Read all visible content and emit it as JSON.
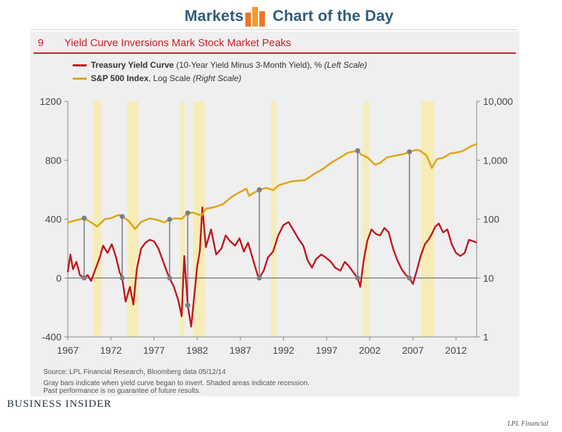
{
  "header": {
    "markets": "Markets",
    "chart_of_the_day": "Chart of the Day",
    "icon": "bar-chart-icon"
  },
  "figure": {
    "number": "9",
    "title": "Yield Curve Inversions Mark Stock Market Peaks"
  },
  "legend": {
    "treasury_bold": "Treasury Yield Curve",
    "treasury_rest": " (10-Year Yield Minus 3-Month Yield), % ",
    "treasury_scale": "(Left Scale)",
    "sp_bold": "S&P 500 Index",
    "sp_rest": ", Log Scale ",
    "sp_scale": "(Right Scale)"
  },
  "footer": {
    "source": "Source: LPL Financial Research, Bloomberg data   05/12/14",
    "note1": "Gray bars indicate when yield curve began to invert. Shaded areas indicate recession.",
    "note2": "Past performance is no guarantee of future results.",
    "brand": "Business Insider",
    "credit": "LPL Financial"
  },
  "colors": {
    "treasury": "#c0141d",
    "sp500": "#dfa51a",
    "recession": "#f6ecb8",
    "inversion_marker": "#7a7f86",
    "title_red": "#c81e29",
    "header_blue": "#2f5d78"
  },
  "chart_data": {
    "type": "line",
    "title": "Yield Curve Inversions Mark Stock Market Peaks",
    "x_range": [
      1967,
      2014.4
    ],
    "x_ticks": [
      "1967",
      "1972",
      "1977",
      "1982",
      "1987",
      "1992",
      "1997",
      "2002",
      "2007",
      "2012"
    ],
    "y_left": {
      "label": "Treasury Yield Curve (10-Year Yield Minus 3-Month Yield), %",
      "range": [
        -400,
        1200
      ],
      "ticks": [
        "1200",
        "800",
        "400",
        "0",
        "-400"
      ]
    },
    "y_right": {
      "label": "S&P 500 Index, Log Scale",
      "scale": "log",
      "range": [
        1,
        10000
      ],
      "ticks": [
        "10,000",
        "1,000",
        "100",
        "10",
        "1"
      ]
    },
    "grid": false,
    "recessions": [
      [
        1969.9,
        1970.9
      ],
      [
        1973.9,
        1975.2
      ],
      [
        1980.0,
        1980.5
      ],
      [
        1981.5,
        1982.9
      ],
      [
        1990.6,
        1991.2
      ],
      [
        2001.2,
        2001.9
      ],
      [
        2007.9,
        2009.5
      ]
    ],
    "inversion_markers": [
      {
        "x": 1968.9,
        "yield": 0,
        "sp500": 104
      },
      {
        "x": 1973.3,
        "yield": 0,
        "sp500": 111
      },
      {
        "x": 1978.8,
        "yield": 0,
        "sp500": 99
      },
      {
        "x": 1980.9,
        "yield": -185,
        "sp500": 127
      },
      {
        "x": 1989.2,
        "yield": 0,
        "sp500": 315
      },
      {
        "x": 2000.6,
        "yield": 0,
        "sp500": 1450
      },
      {
        "x": 2006.6,
        "yield": 0,
        "sp500": 1390
      }
    ],
    "series": [
      {
        "name": "Treasury Yield Curve",
        "axis": "left",
        "points": [
          [
            1967.0,
            40
          ],
          [
            1967.3,
            160
          ],
          [
            1967.6,
            60
          ],
          [
            1968.0,
            110
          ],
          [
            1968.4,
            20
          ],
          [
            1968.9,
            0
          ],
          [
            1969.3,
            20
          ],
          [
            1969.7,
            -20
          ],
          [
            1970.2,
            60
          ],
          [
            1970.7,
            140
          ],
          [
            1971.1,
            220
          ],
          [
            1971.6,
            170
          ],
          [
            1972.1,
            230
          ],
          [
            1972.6,
            140
          ],
          [
            1973.0,
            40
          ],
          [
            1973.3,
            0
          ],
          [
            1973.7,
            -160
          ],
          [
            1974.2,
            -60
          ],
          [
            1974.6,
            -180
          ],
          [
            1975.0,
            60
          ],
          [
            1975.5,
            200
          ],
          [
            1976.0,
            240
          ],
          [
            1976.5,
            260
          ],
          [
            1977.0,
            250
          ],
          [
            1977.5,
            200
          ],
          [
            1978.0,
            120
          ],
          [
            1978.5,
            40
          ],
          [
            1978.8,
            0
          ],
          [
            1979.3,
            -60
          ],
          [
            1979.8,
            -150
          ],
          [
            1980.2,
            -260
          ],
          [
            1980.5,
            150
          ],
          [
            1980.9,
            -185
          ],
          [
            1981.3,
            -330
          ],
          [
            1981.7,
            -100
          ],
          [
            1982.0,
            80
          ],
          [
            1982.3,
            180
          ],
          [
            1982.6,
            480
          ],
          [
            1983.0,
            210
          ],
          [
            1983.6,
            330
          ],
          [
            1984.2,
            160
          ],
          [
            1984.8,
            200
          ],
          [
            1985.3,
            290
          ],
          [
            1985.8,
            250
          ],
          [
            1986.4,
            220
          ],
          [
            1986.9,
            270
          ],
          [
            1987.4,
            180
          ],
          [
            1987.9,
            240
          ],
          [
            1988.5,
            120
          ],
          [
            1989.0,
            20
          ],
          [
            1989.2,
            0
          ],
          [
            1989.7,
            50
          ],
          [
            1990.2,
            140
          ],
          [
            1990.8,
            180
          ],
          [
            1991.4,
            290
          ],
          [
            1992.0,
            360
          ],
          [
            1992.6,
            380
          ],
          [
            1993.2,
            320
          ],
          [
            1993.8,
            260
          ],
          [
            1994.3,
            220
          ],
          [
            1994.8,
            120
          ],
          [
            1995.3,
            70
          ],
          [
            1995.8,
            130
          ],
          [
            1996.4,
            160
          ],
          [
            1996.9,
            140
          ],
          [
            1997.5,
            110
          ],
          [
            1998.0,
            70
          ],
          [
            1998.6,
            50
          ],
          [
            1999.1,
            110
          ],
          [
            1999.6,
            80
          ],
          [
            2000.2,
            30
          ],
          [
            2000.6,
            0
          ],
          [
            2000.9,
            -60
          ],
          [
            2001.3,
            120
          ],
          [
            2001.7,
            250
          ],
          [
            2002.2,
            330
          ],
          [
            2002.7,
            300
          ],
          [
            2003.2,
            290
          ],
          [
            2003.7,
            340
          ],
          [
            2004.2,
            310
          ],
          [
            2004.7,
            200
          ],
          [
            2005.2,
            120
          ],
          [
            2005.7,
            60
          ],
          [
            2006.2,
            20
          ],
          [
            2006.6,
            0
          ],
          [
            2007.0,
            -40
          ],
          [
            2007.5,
            60
          ],
          [
            2007.9,
            150
          ],
          [
            2008.4,
            230
          ],
          [
            2008.8,
            260
          ],
          [
            2009.2,
            300
          ],
          [
            2009.6,
            350
          ],
          [
            2010.0,
            370
          ],
          [
            2010.5,
            310
          ],
          [
            2011.0,
            330
          ],
          [
            2011.5,
            230
          ],
          [
            2012.0,
            170
          ],
          [
            2012.5,
            150
          ],
          [
            2013.0,
            170
          ],
          [
            2013.5,
            260
          ],
          [
            2014.0,
            250
          ],
          [
            2014.4,
            240
          ]
        ]
      },
      {
        "name": "S&P 500 Index",
        "axis": "right",
        "points": [
          [
            1967.0,
            88
          ],
          [
            1968.0,
            96
          ],
          [
            1968.9,
            104
          ],
          [
            1969.5,
            92
          ],
          [
            1970.4,
            75
          ],
          [
            1971.3,
            100
          ],
          [
            1972.0,
            104
          ],
          [
            1972.9,
            118
          ],
          [
            1973.3,
            111
          ],
          [
            1974.0,
            95
          ],
          [
            1974.8,
            68
          ],
          [
            1975.5,
            90
          ],
          [
            1976.5,
            103
          ],
          [
            1977.5,
            96
          ],
          [
            1978.2,
            88
          ],
          [
            1978.8,
            99
          ],
          [
            1979.5,
            103
          ],
          [
            1980.2,
            101
          ],
          [
            1980.9,
            127
          ],
          [
            1981.5,
            129
          ],
          [
            1982.5,
            115
          ],
          [
            1983.0,
            150
          ],
          [
            1984.0,
            160
          ],
          [
            1985.0,
            180
          ],
          [
            1986.0,
            240
          ],
          [
            1987.0,
            290
          ],
          [
            1987.7,
            330
          ],
          [
            1988.0,
            250
          ],
          [
            1989.2,
            315
          ],
          [
            1990.0,
            340
          ],
          [
            1990.8,
            310
          ],
          [
            1991.5,
            380
          ],
          [
            1993.0,
            440
          ],
          [
            1994.5,
            460
          ],
          [
            1995.5,
            580
          ],
          [
            1996.5,
            700
          ],
          [
            1997.5,
            900
          ],
          [
            1998.5,
            1100
          ],
          [
            1999.5,
            1350
          ],
          [
            2000.6,
            1450
          ],
          [
            2001.0,
            1250
          ],
          [
            2001.8,
            1100
          ],
          [
            2002.6,
            840
          ],
          [
            2003.2,
            900
          ],
          [
            2004.0,
            1120
          ],
          [
            2005.0,
            1200
          ],
          [
            2006.0,
            1280
          ],
          [
            2006.6,
            1390
          ],
          [
            2007.4,
            1500
          ],
          [
            2007.8,
            1460
          ],
          [
            2008.6,
            1200
          ],
          [
            2009.2,
            740
          ],
          [
            2009.8,
            1050
          ],
          [
            2010.5,
            1100
          ],
          [
            2011.3,
            1300
          ],
          [
            2012.0,
            1350
          ],
          [
            2012.7,
            1420
          ],
          [
            2013.4,
            1620
          ],
          [
            2014.0,
            1800
          ],
          [
            2014.4,
            1880
          ]
        ]
      }
    ]
  }
}
